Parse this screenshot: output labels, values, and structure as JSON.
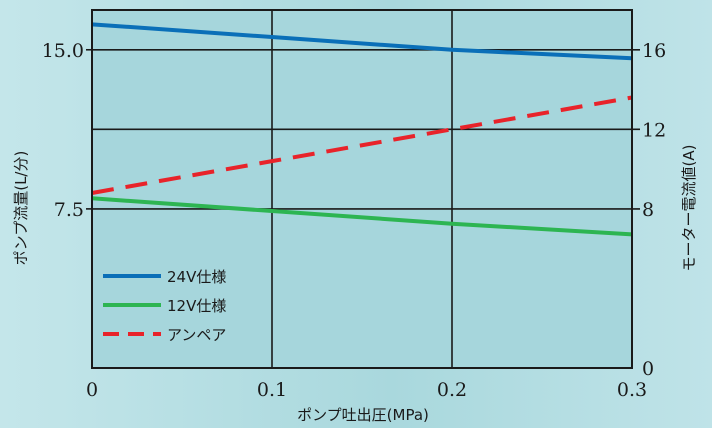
{
  "chart_data": {
    "type": "line",
    "title": "",
    "xlabel": "ポンプ吐出圧(MPa)",
    "ylabel": "ポンプ流量(L/分)",
    "y2label": "モーター電流値(A)",
    "x_ticks": [
      "0",
      "0.1",
      "0.2",
      "0.3"
    ],
    "y_ticks": [
      "7.5",
      "15.0"
    ],
    "y2_ticks": [
      "0",
      "8",
      "12",
      "16"
    ],
    "xlim": [
      0,
      0.3
    ],
    "ylim": [
      0,
      16.875
    ],
    "y2lim": [
      0,
      18
    ],
    "grid": true,
    "legend_position": "bottom-left",
    "series": [
      {
        "name": "24V仕様",
        "axis": "left",
        "color": "#0a6fb8",
        "style": "solid",
        "x": [
          0,
          0.1,
          0.2,
          0.3
        ],
        "values": [
          16.2,
          15.6,
          15.0,
          14.6
        ]
      },
      {
        "name": "12V仕様",
        "axis": "left",
        "color": "#2db552",
        "style": "solid",
        "x": [
          0,
          0.1,
          0.2,
          0.3
        ],
        "values": [
          8.0,
          7.4,
          6.8,
          6.3
        ]
      },
      {
        "name": "アンペア",
        "axis": "right",
        "color": "#e8232a",
        "style": "dashed",
        "x": [
          0,
          0.1,
          0.2,
          0.3
        ],
        "values": [
          8.8,
          10.4,
          12.0,
          13.6
        ]
      }
    ]
  }
}
